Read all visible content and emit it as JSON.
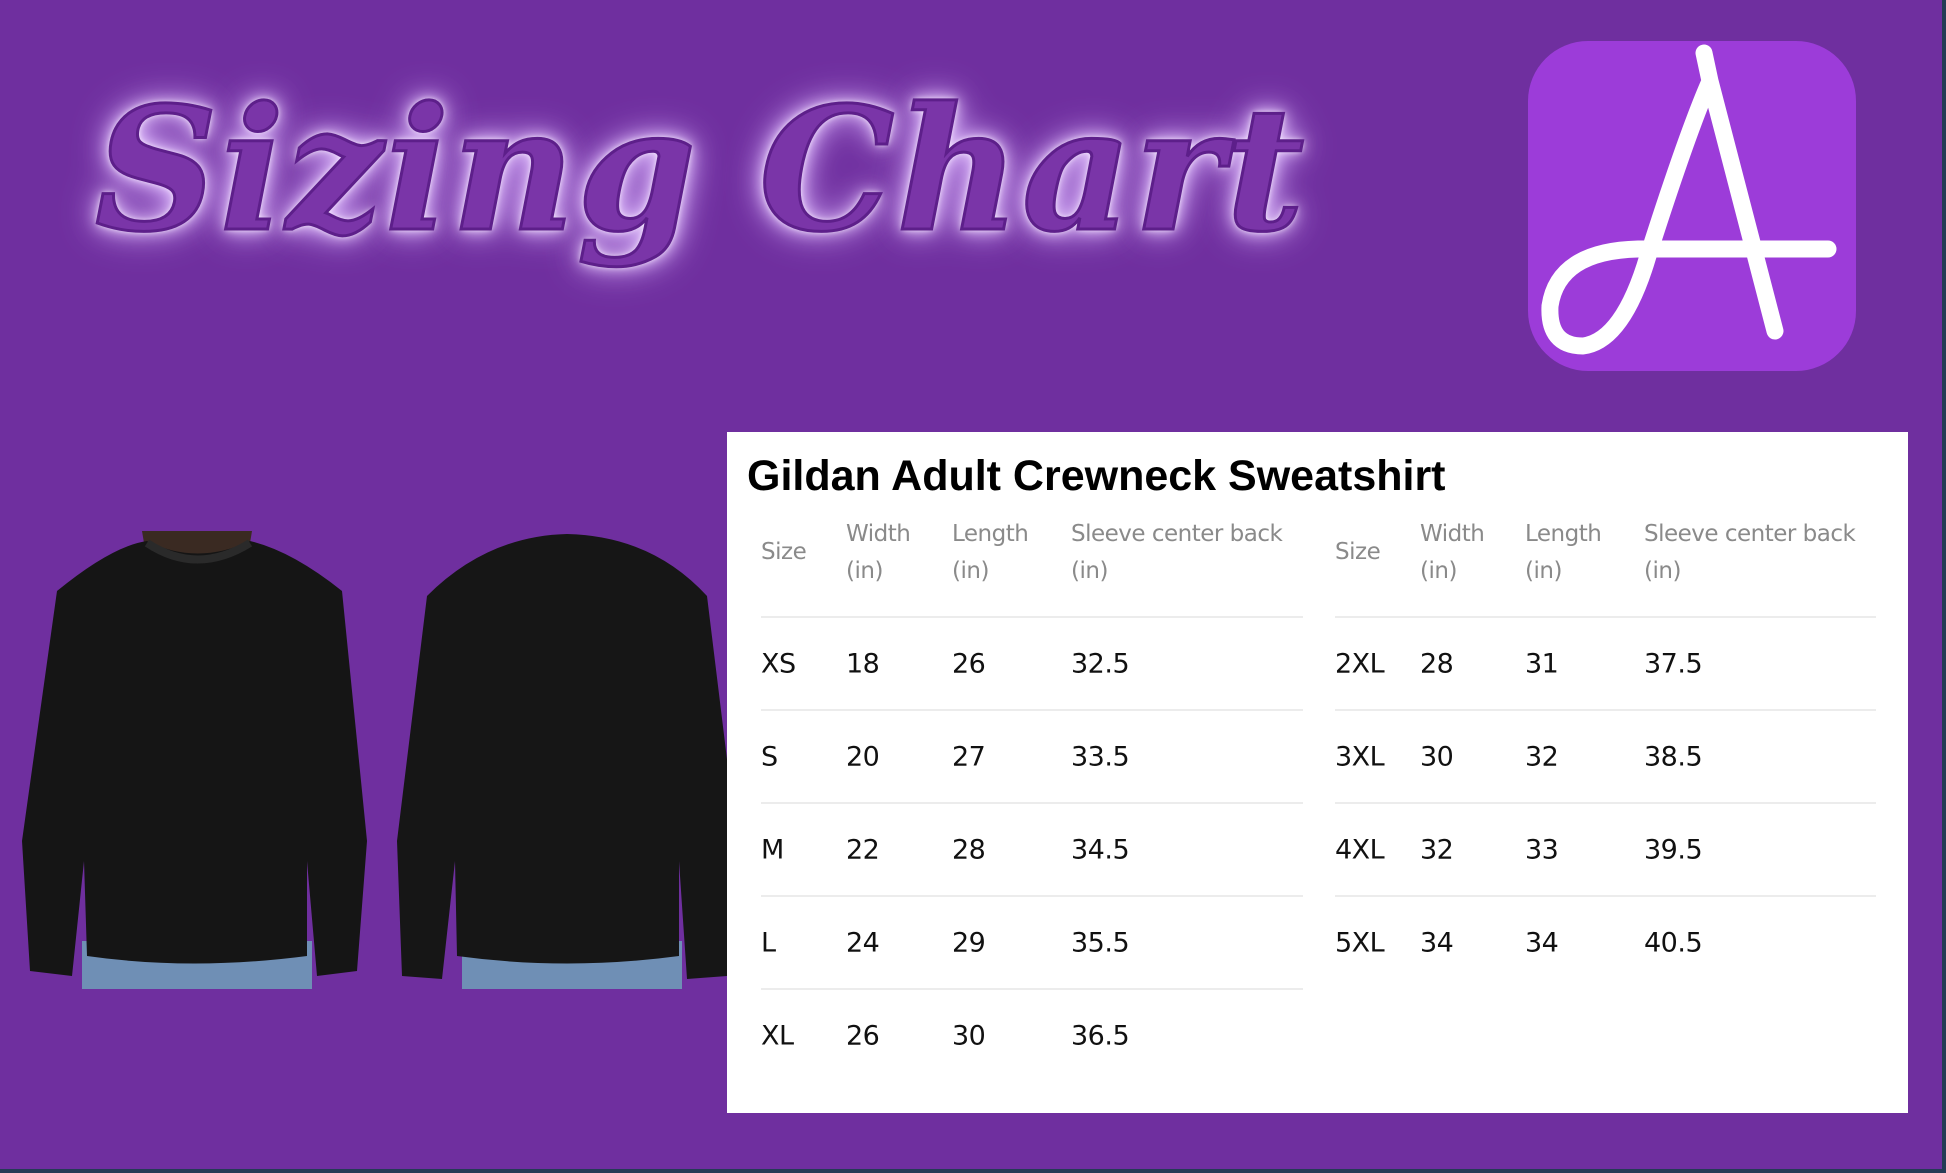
{
  "heading": "Sizing Chart",
  "logo": {
    "letter": "A",
    "bg_color": "#9c3cd9"
  },
  "product": {
    "title": "Gildan Adult Crewneck Sweatshirt"
  },
  "table": {
    "headers": [
      {
        "line1": "Size",
        "line2": ""
      },
      {
        "line1": "Width",
        "line2": "(in)"
      },
      {
        "line1": "Length",
        "line2": "(in)"
      },
      {
        "line1": "Sleeve center back",
        "line2": "(in)"
      }
    ],
    "left_rows": [
      [
        "XS",
        "18",
        "26",
        "32.5"
      ],
      [
        "S",
        "20",
        "27",
        "33.5"
      ],
      [
        "M",
        "22",
        "28",
        "34.5"
      ],
      [
        "L",
        "24",
        "29",
        "35.5"
      ],
      [
        "XL",
        "26",
        "30",
        "36.5"
      ]
    ],
    "right_rows": [
      [
        "2XL",
        "28",
        "31",
        "37.5"
      ],
      [
        "3XL",
        "30",
        "32",
        "38.5"
      ],
      [
        "4XL",
        "32",
        "33",
        "39.5"
      ],
      [
        "5XL",
        "34",
        "34",
        "40.5"
      ]
    ]
  }
}
